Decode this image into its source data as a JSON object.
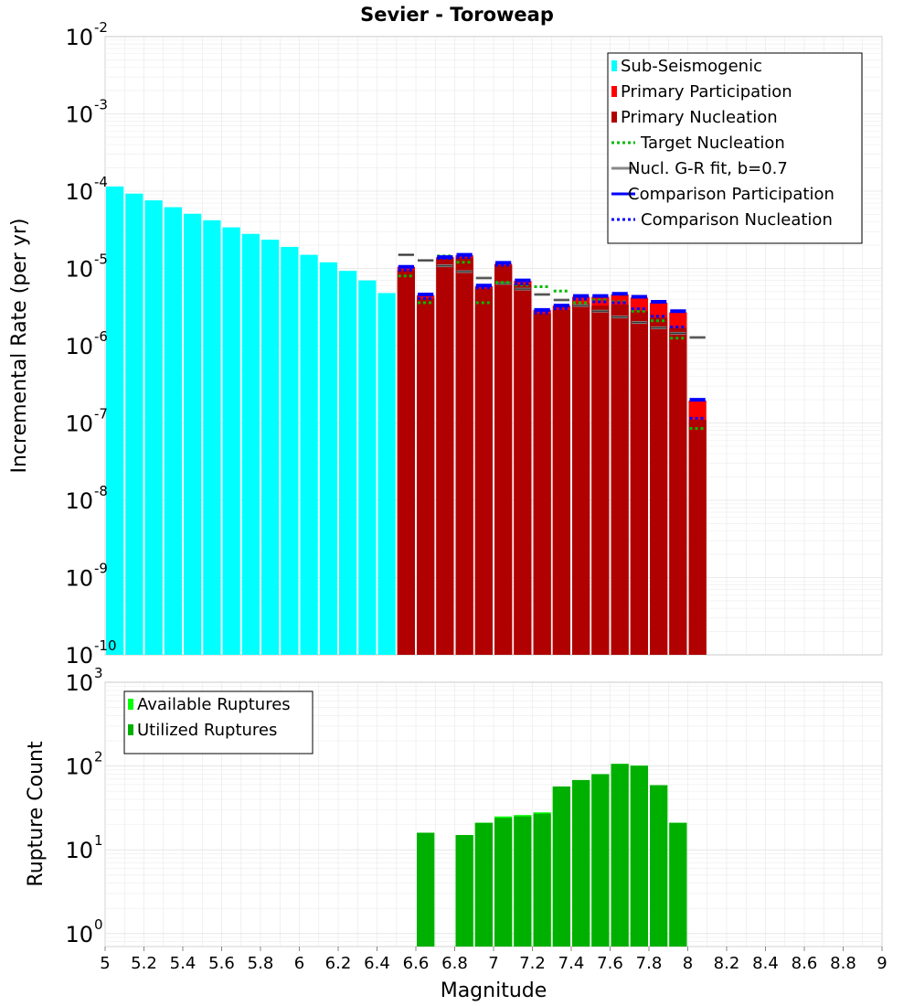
{
  "chart_data": [
    {
      "type": "bar",
      "title": "Sevier - Toroweap",
      "xlabel": "Magnitude",
      "ylabel": "Incremental Rate (per yr)",
      "yscale": "log",
      "xlim": [
        5,
        9
      ],
      "ylim": [
        1e-10,
        0.01
      ],
      "y_tick_exponents": [
        "-10",
        "-9",
        "-8",
        "-7",
        "-6",
        "-5",
        "-4",
        "-3",
        "-2"
      ],
      "x_tick_labels": [
        "5",
        "5.2",
        "5.4",
        "5.6",
        "5.8",
        "6",
        "6.2",
        "6.4",
        "6.6",
        "6.8",
        "7",
        "7.2",
        "7.4",
        "7.6",
        "7.8",
        "8",
        "8.2",
        "8.4",
        "8.6",
        "8.8",
        "9"
      ],
      "bin_width": 0.1,
      "legend_position": "top-right",
      "legend": [
        {
          "label": "Sub-Seismogenic",
          "color": "#00ffff",
          "style": "bar"
        },
        {
          "label": "Primary Participation",
          "color": "#ff0000",
          "style": "bar"
        },
        {
          "label": "Primary Nucleation",
          "color": "#b00000",
          "style": "bar"
        },
        {
          "label": "Target Nucleation",
          "color": "#00bb00",
          "style": "dotted"
        },
        {
          "label": "Nucl. G-R fit, b=0.7",
          "color": "#888888",
          "style": "solid"
        },
        {
          "label": "Comparison Participation",
          "color": "#0000ff",
          "style": "solid"
        },
        {
          "label": "Comparison Nucleation",
          "color": "#0000ff",
          "style": "dotted"
        }
      ],
      "series": [
        {
          "name": "Sub-Seismogenic",
          "color": "#00ffff",
          "x": [
            5.05,
            5.15,
            5.25,
            5.35,
            5.45,
            5.55,
            5.65,
            5.75,
            5.85,
            5.95,
            6.05,
            6.15,
            6.25,
            6.35,
            6.45
          ],
          "values": [
            0.000115,
            9.3e-05,
            7.6e-05,
            6.2e-05,
            5.1e-05,
            4.2e-05,
            3.4e-05,
            2.8e-05,
            2.35e-05,
            1.9e-05,
            1.5e-05,
            1.2e-05,
            9.3e-06,
            7e-06,
            4.8e-06
          ]
        },
        {
          "name": "Primary Participation",
          "color": "#ff0000",
          "x": [
            6.55,
            6.65,
            6.75,
            6.85,
            6.95,
            7.05,
            7.15,
            7.25,
            7.35,
            7.45,
            7.55,
            7.65,
            7.75,
            7.85,
            7.95,
            8.05
          ],
          "values": [
            1.05e-05,
            4.5e-06,
            1.4e-05,
            1.48e-05,
            5.9e-06,
            1.15e-05,
            6.9e-06,
            2.9e-06,
            3.3e-06,
            4.3e-06,
            4.3e-06,
            4.6e-06,
            4.2e-06,
            3.6e-06,
            2.7e-06,
            1.95e-07
          ]
        },
        {
          "name": "Primary Nucleation",
          "color": "#b00000",
          "x": [
            6.55,
            6.65,
            6.75,
            6.85,
            6.95,
            7.05,
            7.15,
            7.25,
            7.35,
            7.45,
            7.55,
            7.65,
            7.75,
            7.85,
            7.95,
            8.05
          ],
          "values": [
            9.5e-06,
            4.1e-06,
            1.35e-05,
            1.38e-05,
            5.5e-06,
            1.1e-05,
            6.2e-06,
            2.6e-06,
            2.9e-06,
            3.5e-06,
            3.3e-06,
            3.4e-06,
            2.8e-06,
            2.3e-06,
            1.7e-06,
            1.1e-07
          ]
        },
        {
          "name": "Target Nucleation",
          "color": "#00bb00",
          "x": [
            6.55,
            6.65,
            6.75,
            6.85,
            6.95,
            7.05,
            7.15,
            7.25,
            7.35,
            7.45,
            7.55,
            7.65,
            7.75,
            7.85,
            7.95,
            8.05
          ],
          "values": [
            8e-06,
            3.6e-06,
            1.45e-05,
            1.2e-05,
            3.6e-06,
            6.6e-06,
            6.1e-06,
            5.8e-06,
            5.1e-06,
            3.6e-06,
            3.9e-06,
            3.7e-06,
            2.8e-06,
            2.1e-06,
            1.25e-06,
            8.5e-08
          ]
        },
        {
          "name": "Nucl. G-R fit, b=0.7",
          "color": "#888888",
          "x": [
            6.55,
            6.65,
            6.75,
            6.85,
            6.95,
            7.05,
            7.15,
            7.25,
            7.35,
            7.45,
            7.55,
            7.65,
            7.75,
            7.85,
            7.95,
            8.05
          ],
          "values": [
            1.5e-05,
            1.27e-05,
            1.08e-05,
            9.1e-06,
            7.5e-06,
            6.4e-06,
            5.4e-06,
            4.6e-06,
            3.9e-06,
            3.3e-06,
            2.8e-06,
            2.35e-06,
            2e-06,
            1.7e-06,
            1.45e-06,
            1.28e-06
          ]
        },
        {
          "name": "Comparison Participation",
          "color": "#0000ff",
          "x": [
            6.55,
            6.65,
            6.75,
            6.85,
            6.95,
            7.05,
            7.15,
            7.25,
            7.35,
            7.45,
            7.55,
            7.65,
            7.75,
            7.85,
            7.95,
            8.05
          ],
          "values": [
            1.05e-05,
            4.6e-06,
            1.4e-05,
            1.5e-05,
            6e-06,
            1.18e-05,
            7e-06,
            2.9e-06,
            3.3e-06,
            4.4e-06,
            4.4e-06,
            4.7e-06,
            4.3e-06,
            3.7e-06,
            2.8e-06,
            2e-07
          ]
        },
        {
          "name": "Comparison Nucleation",
          "color": "#0000ff",
          "x": [
            6.55,
            6.65,
            6.75,
            6.85,
            6.95,
            7.05,
            7.15,
            7.25,
            7.35,
            7.45,
            7.55,
            7.65,
            7.75,
            7.85,
            7.95,
            8.05
          ],
          "values": [
            9.5e-06,
            4.1e-06,
            1.35e-05,
            1.38e-05,
            5.6e-06,
            1.1e-05,
            6.3e-06,
            2.65e-06,
            3e-06,
            4e-06,
            3.7e-06,
            3.6e-06,
            3e-06,
            2.4e-06,
            1.75e-06,
            1.15e-07
          ]
        }
      ]
    },
    {
      "type": "bar",
      "xlabel": "Magnitude",
      "ylabel": "Rupture Count",
      "yscale": "log",
      "xlim": [
        5,
        9
      ],
      "ylim": [
        0.7,
        1000
      ],
      "y_tick_exponents": [
        "0",
        "1",
        "2",
        "3"
      ],
      "bin_width": 0.1,
      "legend_position": "top-left",
      "legend": [
        {
          "label": "Available Ruptures",
          "color": "#00ff00",
          "style": "bar"
        },
        {
          "label": "Utilized Ruptures",
          "color": "#00b000",
          "style": "bar"
        }
      ],
      "series": [
        {
          "name": "Available Ruptures",
          "color": "#00ff00",
          "x": [
            6.65,
            6.85,
            6.95,
            7.05,
            7.15,
            7.25,
            7.35,
            7.45,
            7.55,
            7.65,
            7.75,
            7.85,
            7.95
          ],
          "values": [
            16,
            15,
            21,
            25,
            26,
            28,
            57,
            68,
            80,
            106,
            101,
            59,
            21
          ]
        },
        {
          "name": "Utilized Ruptures",
          "color": "#00b000",
          "x": [
            6.65,
            6.85,
            6.95,
            7.05,
            7.15,
            7.25,
            7.35,
            7.45,
            7.55,
            7.65,
            7.75,
            7.85,
            7.95
          ],
          "values": [
            16,
            15,
            21,
            24,
            25,
            27,
            57,
            68,
            80,
            106,
            101,
            59,
            21
          ]
        }
      ]
    }
  ]
}
